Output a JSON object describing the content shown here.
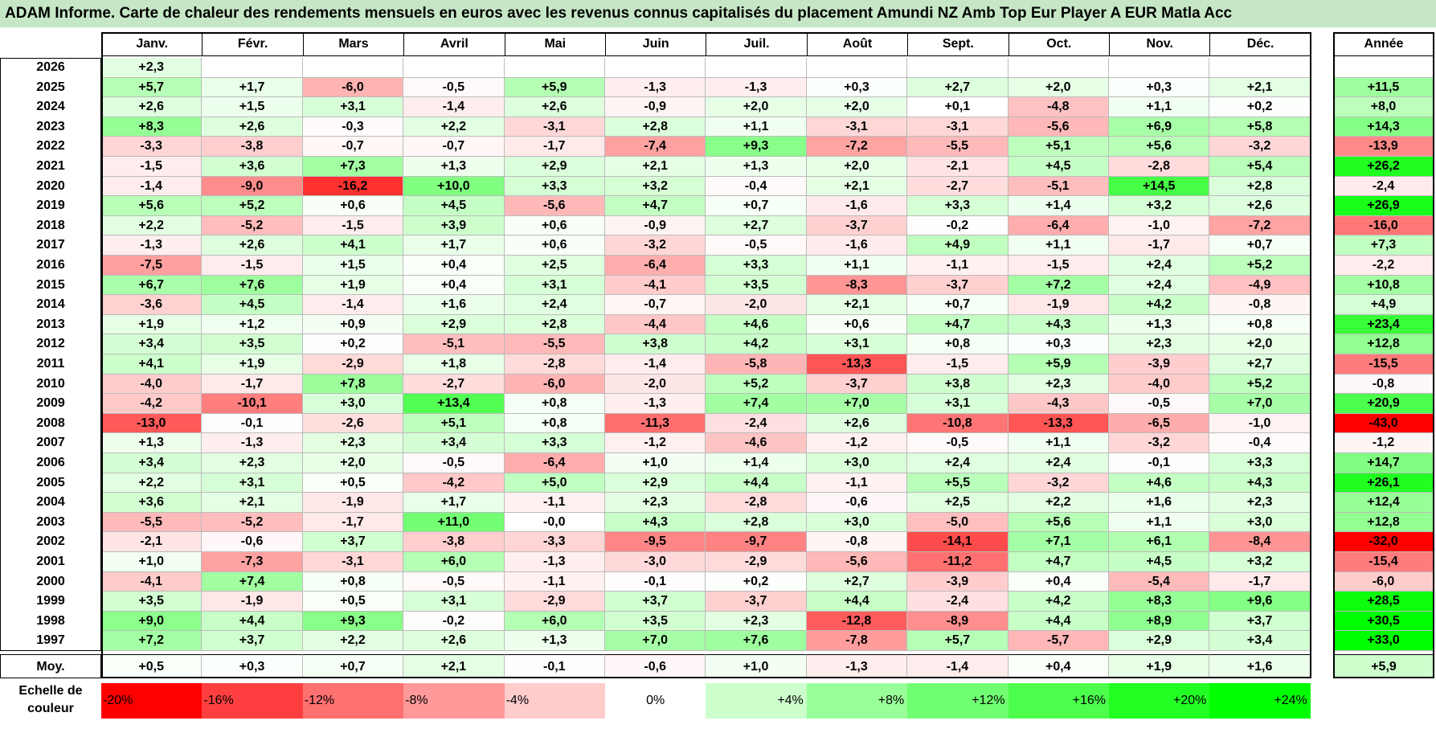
{
  "title": "ADAM Informe. Carte de chaleur des rendements mensuels en euros avec les revenus connus capitalisés du placement Amundi NZ Amb Top Eur Player A EUR Matla Acc",
  "chart_data": {
    "type": "heatmap",
    "months": [
      "Janv.",
      "Févr.",
      "Mars",
      "Avril",
      "Mai",
      "Juin",
      "Juil.",
      "Août",
      "Sept.",
      "Oct.",
      "Nov.",
      "Déc."
    ],
    "year_header": "Année",
    "rows": [
      {
        "year": "2026",
        "values": [
          "+2,3",
          "",
          "",
          "",
          "",
          "",
          "",
          "",
          "",
          "",
          "",
          ""
        ],
        "annual": ""
      },
      {
        "year": "2025",
        "values": [
          "+5,7",
          "+1,7",
          "-6,0",
          "-0,5",
          "+5,9",
          "-1,3",
          "-1,3",
          "+0,3",
          "+2,7",
          "+2,0",
          "+0,3",
          "+2,1"
        ],
        "annual": "+11,5"
      },
      {
        "year": "2024",
        "values": [
          "+2,6",
          "+1,5",
          "+3,1",
          "-1,4",
          "+2,6",
          "-0,9",
          "+2,0",
          "+2,0",
          "+0,1",
          "-4,8",
          "+1,1",
          "+0,2"
        ],
        "annual": "+8,0"
      },
      {
        "year": "2023",
        "values": [
          "+8,3",
          "+2,6",
          "-0,3",
          "+2,2",
          "-3,1",
          "+2,8",
          "+1,1",
          "-3,1",
          "-3,1",
          "-5,6",
          "+6,9",
          "+5,8"
        ],
        "annual": "+14,3"
      },
      {
        "year": "2022",
        "values": [
          "-3,3",
          "-3,8",
          "-0,7",
          "-0,7",
          "-1,7",
          "-7,4",
          "+9,3",
          "-7,2",
          "-5,5",
          "+5,1",
          "+5,6",
          "-3,2"
        ],
        "annual": "-13,9"
      },
      {
        "year": "2021",
        "values": [
          "-1,5",
          "+3,6",
          "+7,3",
          "+1,3",
          "+2,9",
          "+2,1",
          "+1,3",
          "+2,0",
          "-2,1",
          "+4,5",
          "-2,8",
          "+5,4"
        ],
        "annual": "+26,2"
      },
      {
        "year": "2020",
        "values": [
          "-1,4",
          "-9,0",
          "-16,2",
          "+10,0",
          "+3,3",
          "+3,2",
          "-0,4",
          "+2,1",
          "-2,7",
          "-5,1",
          "+14,5",
          "+2,8"
        ],
        "annual": "-2,4"
      },
      {
        "year": "2019",
        "values": [
          "+5,6",
          "+5,2",
          "+0,6",
          "+4,5",
          "-5,6",
          "+4,7",
          "+0,7",
          "-1,6",
          "+3,3",
          "+1,4",
          "+3,2",
          "+2,6"
        ],
        "annual": "+26,9"
      },
      {
        "year": "2018",
        "values": [
          "+2,2",
          "-5,2",
          "-1,5",
          "+3,9",
          "+0,6",
          "-0,9",
          "+2,7",
          "-3,7",
          "-0,2",
          "-6,4",
          "-1,0",
          "-7,2"
        ],
        "annual": "-16,0"
      },
      {
        "year": "2017",
        "values": [
          "-1,3",
          "+2,6",
          "+4,1",
          "+1,7",
          "+0,6",
          "-3,2",
          "-0,5",
          "-1,6",
          "+4,9",
          "+1,1",
          "-1,7",
          "+0,7"
        ],
        "annual": "+7,3"
      },
      {
        "year": "2016",
        "values": [
          "-7,5",
          "-1,5",
          "+1,5",
          "+0,4",
          "+2,5",
          "-6,4",
          "+3,3",
          "+1,1",
          "-1,1",
          "-1,5",
          "+2,4",
          "+5,2"
        ],
        "annual": "-2,2"
      },
      {
        "year": "2015",
        "values": [
          "+6,7",
          "+7,6",
          "+1,9",
          "+0,4",
          "+3,1",
          "-4,1",
          "+3,5",
          "-8,3",
          "-3,7",
          "+7,2",
          "+2,4",
          "-4,9"
        ],
        "annual": "+10,8"
      },
      {
        "year": "2014",
        "values": [
          "-3,6",
          "+4,5",
          "-1,4",
          "+1,6",
          "+2,4",
          "-0,7",
          "-2,0",
          "+2,1",
          "+0,7",
          "-1,9",
          "+4,2",
          "-0,8"
        ],
        "annual": "+4,9"
      },
      {
        "year": "2013",
        "values": [
          "+1,9",
          "+1,2",
          "+0,9",
          "+2,9",
          "+2,8",
          "-4,4",
          "+4,6",
          "+0,6",
          "+4,7",
          "+4,3",
          "+1,3",
          "+0,8"
        ],
        "annual": "+23,4"
      },
      {
        "year": "2012",
        "values": [
          "+3,4",
          "+3,5",
          "+0,2",
          "-5,1",
          "-5,5",
          "+3,8",
          "+4,2",
          "+3,1",
          "+0,8",
          "+0,3",
          "+2,3",
          "+2,0"
        ],
        "annual": "+12,8"
      },
      {
        "year": "2011",
        "values": [
          "+4,1",
          "+1,9",
          "-2,9",
          "+1,8",
          "-2,8",
          "-1,4",
          "-5,8",
          "-13,3",
          "-1,5",
          "+5,9",
          "-3,9",
          "+2,7"
        ],
        "annual": "-15,5"
      },
      {
        "year": "2010",
        "values": [
          "-4,0",
          "-1,7",
          "+7,8",
          "-2,7",
          "-6,0",
          "-2,0",
          "+5,2",
          "-3,7",
          "+3,8",
          "+2,3",
          "-4,0",
          "+5,2"
        ],
        "annual": "-0,8"
      },
      {
        "year": "2009",
        "values": [
          "-4,2",
          "-10,1",
          "+3,0",
          "+13,4",
          "+0,8",
          "-1,3",
          "+7,4",
          "+7,0",
          "+3,1",
          "-4,3",
          "-0,5",
          "+7,0"
        ],
        "annual": "+20,9"
      },
      {
        "year": "2008",
        "values": [
          "-13,0",
          "-0,1",
          "-2,6",
          "+5,1",
          "+0,8",
          "-11,3",
          "-2,4",
          "+2,6",
          "-10,8",
          "-13,3",
          "-6,5",
          "-1,0"
        ],
        "annual": "-43,0"
      },
      {
        "year": "2007",
        "values": [
          "+1,3",
          "-1,3",
          "+2,3",
          "+3,4",
          "+3,3",
          "-1,2",
          "-4,6",
          "-1,2",
          "-0,5",
          "+1,1",
          "-3,2",
          "-0,4"
        ],
        "annual": "-1,2"
      },
      {
        "year": "2006",
        "values": [
          "+3,4",
          "+2,3",
          "+2,0",
          "-0,5",
          "-6,4",
          "+1,0",
          "+1,4",
          "+3,0",
          "+2,4",
          "+2,4",
          "-0,1",
          "+3,3"
        ],
        "annual": "+14,7"
      },
      {
        "year": "2005",
        "values": [
          "+2,2",
          "+3,1",
          "+0,5",
          "-4,2",
          "+5,0",
          "+2,9",
          "+4,4",
          "-1,1",
          "+5,5",
          "-3,2",
          "+4,6",
          "+4,3"
        ],
        "annual": "+26,1"
      },
      {
        "year": "2004",
        "values": [
          "+3,6",
          "+2,1",
          "-1,9",
          "+1,7",
          "-1,1",
          "+2,3",
          "-2,8",
          "-0,6",
          "+2,5",
          "+2,2",
          "+1,6",
          "+2,3"
        ],
        "annual": "+12,4"
      },
      {
        "year": "2003",
        "values": [
          "-5,5",
          "-5,2",
          "-1,7",
          "+11,0",
          "-0,0",
          "+4,3",
          "+2,8",
          "+3,0",
          "-5,0",
          "+5,6",
          "+1,1",
          "+3,0"
        ],
        "annual": "+12,8"
      },
      {
        "year": "2002",
        "values": [
          "-2,1",
          "-0,6",
          "+3,7",
          "-3,8",
          "-3,3",
          "-9,5",
          "-9,7",
          "-0,8",
          "-14,1",
          "+7,1",
          "+6,1",
          "-8,4"
        ],
        "annual": "-32,0"
      },
      {
        "year": "2001",
        "values": [
          "+1,0",
          "-7,3",
          "-3,1",
          "+6,0",
          "-1,3",
          "-3,0",
          "-2,9",
          "-5,6",
          "-11,2",
          "+4,7",
          "+4,5",
          "+3,2"
        ],
        "annual": "-15,4"
      },
      {
        "year": "2000",
        "values": [
          "-4,1",
          "+7,4",
          "+0,8",
          "-0,5",
          "-1,1",
          "-0,1",
          "+0,2",
          "+2,7",
          "-3,9",
          "+0,4",
          "-5,4",
          "-1,7"
        ],
        "annual": "-6,0"
      },
      {
        "year": "1999",
        "values": [
          "+3,5",
          "-1,9",
          "+0,5",
          "+3,1",
          "-2,9",
          "+3,7",
          "-3,7",
          "+4,4",
          "-2,4",
          "+4,2",
          "+8,3",
          "+9,6"
        ],
        "annual": "+28,5"
      },
      {
        "year": "1998",
        "values": [
          "+9,0",
          "+4,4",
          "+9,3",
          "-0,2",
          "+6,0",
          "+3,5",
          "+2,3",
          "-12,8",
          "-8,9",
          "+4,4",
          "+8,9",
          "+3,7"
        ],
        "annual": "+30,5"
      },
      {
        "year": "1997",
        "values": [
          "+7,2",
          "+3,7",
          "+2,2",
          "+2,6",
          "+1,3",
          "+7,0",
          "+7,6",
          "-7,8",
          "+5,7",
          "-5,7",
          "+2,9",
          "+3,4"
        ],
        "annual": "+33,0"
      }
    ],
    "average_label": "Moy.",
    "averages": [
      "+0,5",
      "+0,3",
      "+0,7",
      "+2,1",
      "-0,1",
      "-0,6",
      "+1,0",
      "-1,3",
      "-1,4",
      "+0,4",
      "+1,9",
      "+1,6"
    ],
    "average_annual": "+5,9",
    "scale_label": "Echelle de couleur",
    "scale": [
      {
        "label": "-20%",
        "color": "#ff0000"
      },
      {
        "label": "-16%",
        "color": "#ff3f3f"
      },
      {
        "label": "-12%",
        "color": "#ff7070"
      },
      {
        "label": "-8%",
        "color": "#ff9999"
      },
      {
        "label": "-4%",
        "color": "#ffcccc"
      },
      {
        "label": "0%",
        "color": "#ffffff"
      },
      {
        "label": "+4%",
        "color": "#ccffcc"
      },
      {
        "label": "+8%",
        "color": "#99ff99"
      },
      {
        "label": "+12%",
        "color": "#70ff70"
      },
      {
        "label": "+16%",
        "color": "#4cff4c"
      },
      {
        "label": "+20%",
        "color": "#22ff22"
      },
      {
        "label": "+24%",
        "color": "#00ff00"
      }
    ]
  }
}
